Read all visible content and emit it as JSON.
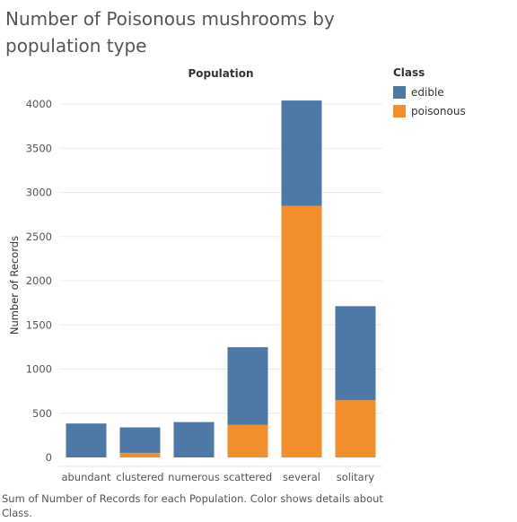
{
  "title": "Number of Poisonous mushrooms by population type",
  "caption": "Sum of Number of Records for each Population.  Color shows details about Class.",
  "legend": {
    "title": "Class",
    "items": [
      {
        "label": "edible",
        "color": "#4e79a7"
      },
      {
        "label": "poisonous",
        "color": "#f28e2b"
      }
    ]
  },
  "chart_data": {
    "type": "bar",
    "stacked": true,
    "title": "Number of Poisonous mushrooms by population type",
    "column_header": "Population",
    "xlabel": "",
    "ylabel": "Number of Records",
    "categories": [
      "abundant",
      "clustered",
      "numerous",
      "scattered",
      "several",
      "solitary"
    ],
    "series": [
      {
        "name": "poisonous",
        "color": "#f28e2b",
        "values": [
          0,
          52,
          0,
          368,
          2848,
          648
        ]
      },
      {
        "name": "edible",
        "color": "#4e79a7",
        "values": [
          384,
          288,
          400,
          880,
          1192,
          1064
        ]
      }
    ],
    "ylim": [
      0,
      4100
    ],
    "yticks": [
      0,
      500,
      1000,
      1500,
      2000,
      2500,
      3000,
      3500,
      4000
    ],
    "grid": true,
    "legend_position": "right"
  }
}
